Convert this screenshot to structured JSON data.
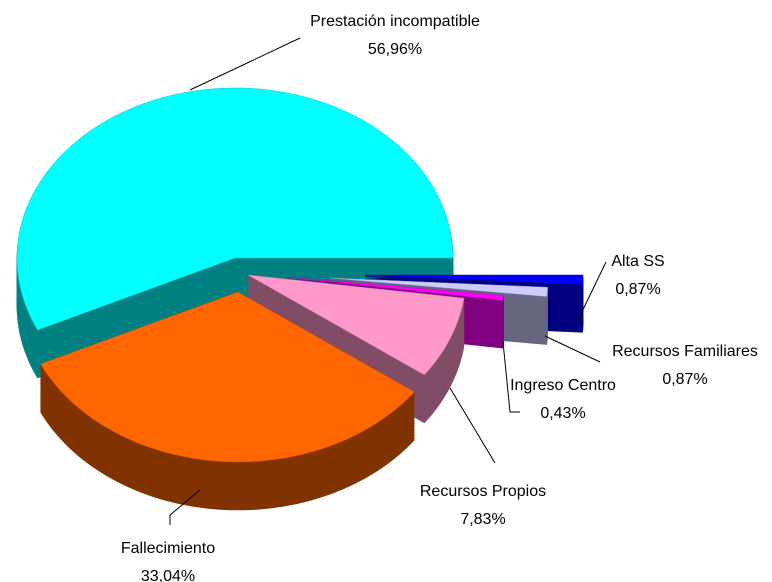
{
  "chart_data": {
    "type": "pie",
    "categories": [
      "Prestación incompatible",
      "Fallecimiento",
      "Recursos Propios",
      "Ingreso Centro",
      "Recursos Familiares",
      "Alta SS"
    ],
    "values": [
      56.96,
      33.04,
      7.83,
      0.43,
      0.87,
      0.87
    ],
    "value_labels": [
      "56,96%",
      "33,04%",
      "7,83%",
      "0,43%",
      "0,87%",
      "0,87%"
    ],
    "colors": [
      "#00ffff",
      "#ff6600",
      "#ff99cc",
      "#ff00ff",
      "#ccccff",
      "#0000ff"
    ]
  }
}
